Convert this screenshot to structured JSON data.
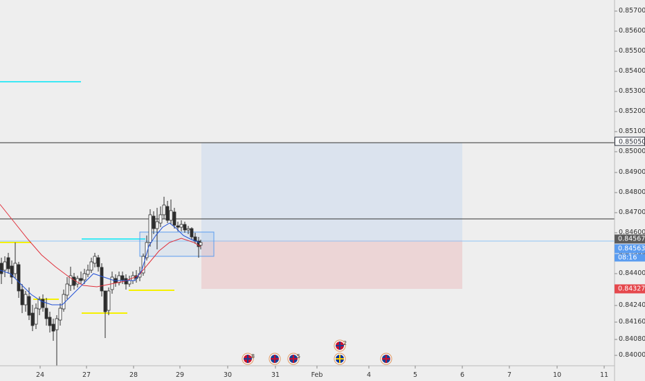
{
  "price_axis": {
    "min": 0.84,
    "max": 0.8575,
    "labels": [
      "0.85700",
      "0.85600",
      "0.85500",
      "0.85400",
      "0.85300",
      "0.85200",
      "0.85100",
      "0.85000",
      "0.84900",
      "0.84800",
      "0.84700",
      "0.84600",
      "0.84500",
      "0.84400",
      "0.84240",
      "0.84160",
      "0.84080",
      "0.84000"
    ]
  },
  "date_axis": {
    "labels": [
      "24",
      "27",
      "28",
      "29",
      "30",
      "31",
      "Feb",
      "4",
      "5",
      "6",
      "7",
      "10",
      "11"
    ]
  },
  "price_tags": {
    "target": {
      "text": "0.85050",
      "price": 0.8505,
      "color": "#2a2e39",
      "text_color": "#ffffff",
      "bg": "#ffffff"
    },
    "current": {
      "text": "0.84567",
      "price": 0.84567,
      "color": "#5b5b5b"
    },
    "bid": {
      "text": "0.84563",
      "price": 0.84563,
      "color": "#5a9cf0"
    },
    "countdown": {
      "text": "08:16",
      "color": "#5a9cf0"
    },
    "stop": {
      "text": "0.84327",
      "price": 0.84327,
      "color": "#e5484d"
    }
  },
  "events": [
    {
      "flag": "us-uk-flag-icon",
      "count": "8"
    },
    {
      "flag": "uk-flag-icon",
      "count": ""
    },
    {
      "flag": "uk-flag-icon",
      "count": "5"
    },
    {
      "flag": "eu-flag-icon",
      "count": ""
    },
    {
      "flag": "uk-flag-icon",
      "count": ""
    },
    {
      "flag": "us-uk-flag-icon",
      "count": "2"
    }
  ],
  "chart_data": {
    "type": "candlestick",
    "symbol_quote": "0.84563",
    "ylim": [
      0.84,
      0.8575
    ],
    "horizontal_levels": [
      0.8505,
      0.84663,
      0.84567
    ],
    "position": {
      "entry": 0.84567,
      "target": 0.8505,
      "stop": 0.84327
    },
    "colors": {
      "up": "#2d2d2d",
      "down": "#2d2d2d",
      "ma_fast": "#1f4fd6",
      "ma_slow": "#e0303b",
      "profit_zone": "#dbe3ee",
      "loss_zone": "#ecd5d6",
      "accent": "#5a9cf0",
      "support": "#f5f000",
      "resistance": "#00e5f5"
    }
  }
}
